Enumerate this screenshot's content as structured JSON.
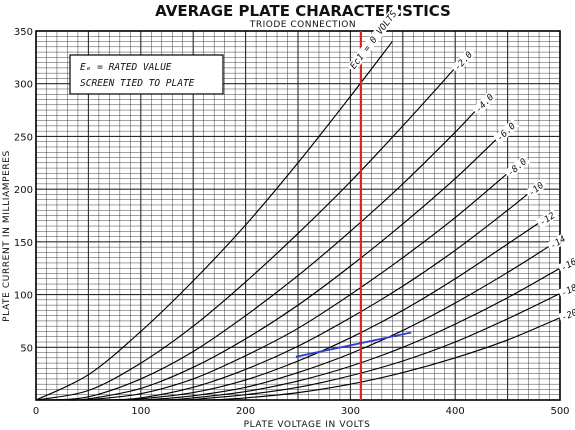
{
  "chart_data": {
    "type": "line",
    "title": "AVERAGE PLATE CHARACTERISTICS",
    "subtitle": "TRIODE CONNECTION",
    "xlabel": "PLATE VOLTAGE IN VOLTS",
    "ylabel": "PLATE CURRENT IN MILLIAMPERES",
    "xlim": [
      0,
      500
    ],
    "ylim": [
      0,
      350
    ],
    "x_ticks": [
      "0",
      "100",
      "200",
      "300",
      "400",
      "500"
    ],
    "y_ticks": [
      "50",
      "100",
      "150",
      "200",
      "250",
      "300",
      "350"
    ],
    "grid": true,
    "annotation_lines": [
      "Eₑ = RATED VALUE",
      "SCREEN TIED TO PLATE"
    ],
    "curve_param_prefix": "Ec1 = ",
    "colors": {
      "grid": "#2b2b2b",
      "curves": "#000000",
      "red_line": "#dd2222",
      "blue_line": "#2a3fd0"
    },
    "series": [
      {
        "name": "0 VOLTS",
        "x": [
          0,
          50,
          100,
          150,
          200,
          250,
          300,
          340
        ],
        "y": [
          0,
          24,
          65,
          113,
          166,
          225,
          288,
          340
        ]
      },
      {
        "name": "-2.0",
        "x": [
          0,
          50,
          100,
          150,
          200,
          250,
          300,
          350,
          400
        ],
        "y": [
          0,
          9,
          35,
          70,
          112,
          158,
          207,
          260,
          315
        ]
      },
      {
        "name": "-4.0",
        "x": [
          12,
          50,
          100,
          150,
          200,
          250,
          300,
          350,
          400,
          420
        ],
        "y": [
          0,
          3,
          20,
          46,
          80,
          118,
          160,
          205,
          254,
          275
        ]
      },
      {
        "name": "-6.0",
        "x": [
          30,
          50,
          100,
          150,
          200,
          250,
          300,
          350,
          400,
          440
        ],
        "y": [
          0,
          1,
          11,
          31,
          58,
          90,
          127,
          167,
          210,
          248
        ]
      },
      {
        "name": "-8.0",
        "x": [
          48,
          100,
          150,
          200,
          250,
          300,
          350,
          400,
          450
        ],
        "y": [
          0,
          6,
          20,
          42,
          68,
          100,
          135,
          173,
          215
        ]
      },
      {
        "name": "-10",
        "x": [
          66,
          100,
          150,
          200,
          250,
          300,
          350,
          400,
          450,
          470
        ],
        "y": [
          0,
          2,
          12,
          29,
          51,
          78,
          108,
          142,
          180,
          196
        ]
      },
      {
        "name": "-12",
        "x": [
          84,
          100,
          150,
          200,
          250,
          300,
          350,
          400,
          450,
          480
        ],
        "y": [
          0,
          1,
          7,
          19,
          37,
          59,
          85,
          115,
          148,
          168
        ]
      },
      {
        "name": "-14",
        "x": [
          104,
          150,
          200,
          250,
          300,
          350,
          400,
          450,
          490
        ],
        "y": [
          0,
          4,
          12,
          26,
          44,
          66,
          92,
          121,
          146
        ]
      },
      {
        "name": "-16",
        "x": [
          124,
          150,
          200,
          250,
          300,
          350,
          400,
          450,
          500
        ],
        "y": [
          0,
          2,
          8,
          18,
          32,
          50,
          72,
          97,
          125
        ]
      },
      {
        "name": "-18",
        "x": [
          144,
          200,
          250,
          300,
          350,
          400,
          450,
          500
        ],
        "y": [
          0,
          5,
          12,
          23,
          37,
          55,
          77,
          101
        ]
      },
      {
        "name": "-20",
        "x": [
          164,
          200,
          250,
          300,
          350,
          400,
          450,
          500
        ],
        "y": [
          0,
          2,
          7,
          15,
          26,
          40,
          57,
          78
        ]
      }
    ],
    "reference_lines": [
      {
        "kind": "vertical",
        "x": 310,
        "color": "red"
      },
      {
        "kind": "segment",
        "x": [
          248,
          358
        ],
        "y": [
          41,
          64
        ],
        "color": "blue"
      }
    ]
  }
}
